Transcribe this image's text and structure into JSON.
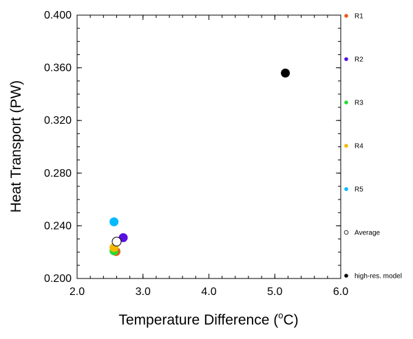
{
  "chart_data": {
    "type": "scatter",
    "xlabel": "Temperature Difference (",
    "xlabel_super": "o",
    "xlabel_suffix": "C)",
    "ylabel": "Heat Transport (PW)",
    "xlim": [
      2.0,
      6.0
    ],
    "ylim": [
      0.2,
      0.4
    ],
    "x_ticks": [
      "2.0",
      "3.0",
      "4.0",
      "5.0",
      "6.0"
    ],
    "y_ticks": [
      "0.200",
      "0.240",
      "0.280",
      "0.320",
      "0.360",
      "0.400"
    ],
    "grid": false,
    "legend_position": "right",
    "series": [
      {
        "name": "R1",
        "color": "#f05a1a",
        "marker": "filled-circle",
        "points": [
          {
            "x": 2.59,
            "y": 0.2205
          }
        ]
      },
      {
        "name": "R2",
        "color": "#5a10e0",
        "marker": "filled-circle",
        "points": [
          {
            "x": 2.7,
            "y": 0.231
          }
        ]
      },
      {
        "name": "R3",
        "color": "#22dd33",
        "marker": "filled-circle",
        "points": [
          {
            "x": 2.56,
            "y": 0.221
          }
        ]
      },
      {
        "name": "R4",
        "color": "#f5b800",
        "marker": "filled-circle",
        "points": [
          {
            "x": 2.56,
            "y": 0.2235
          }
        ]
      },
      {
        "name": "R5",
        "color": "#00bbff",
        "marker": "filled-circle",
        "points": [
          {
            "x": 2.56,
            "y": 0.243
          }
        ]
      },
      {
        "name": "Average",
        "color": "#000000",
        "marker": "open-circle",
        "points": [
          {
            "x": 2.6,
            "y": 0.228
          }
        ]
      },
      {
        "name": "high-res. model",
        "color": "#000000",
        "marker": "filled-circle",
        "points": [
          {
            "x": 5.16,
            "y": 0.356
          }
        ]
      }
    ]
  }
}
